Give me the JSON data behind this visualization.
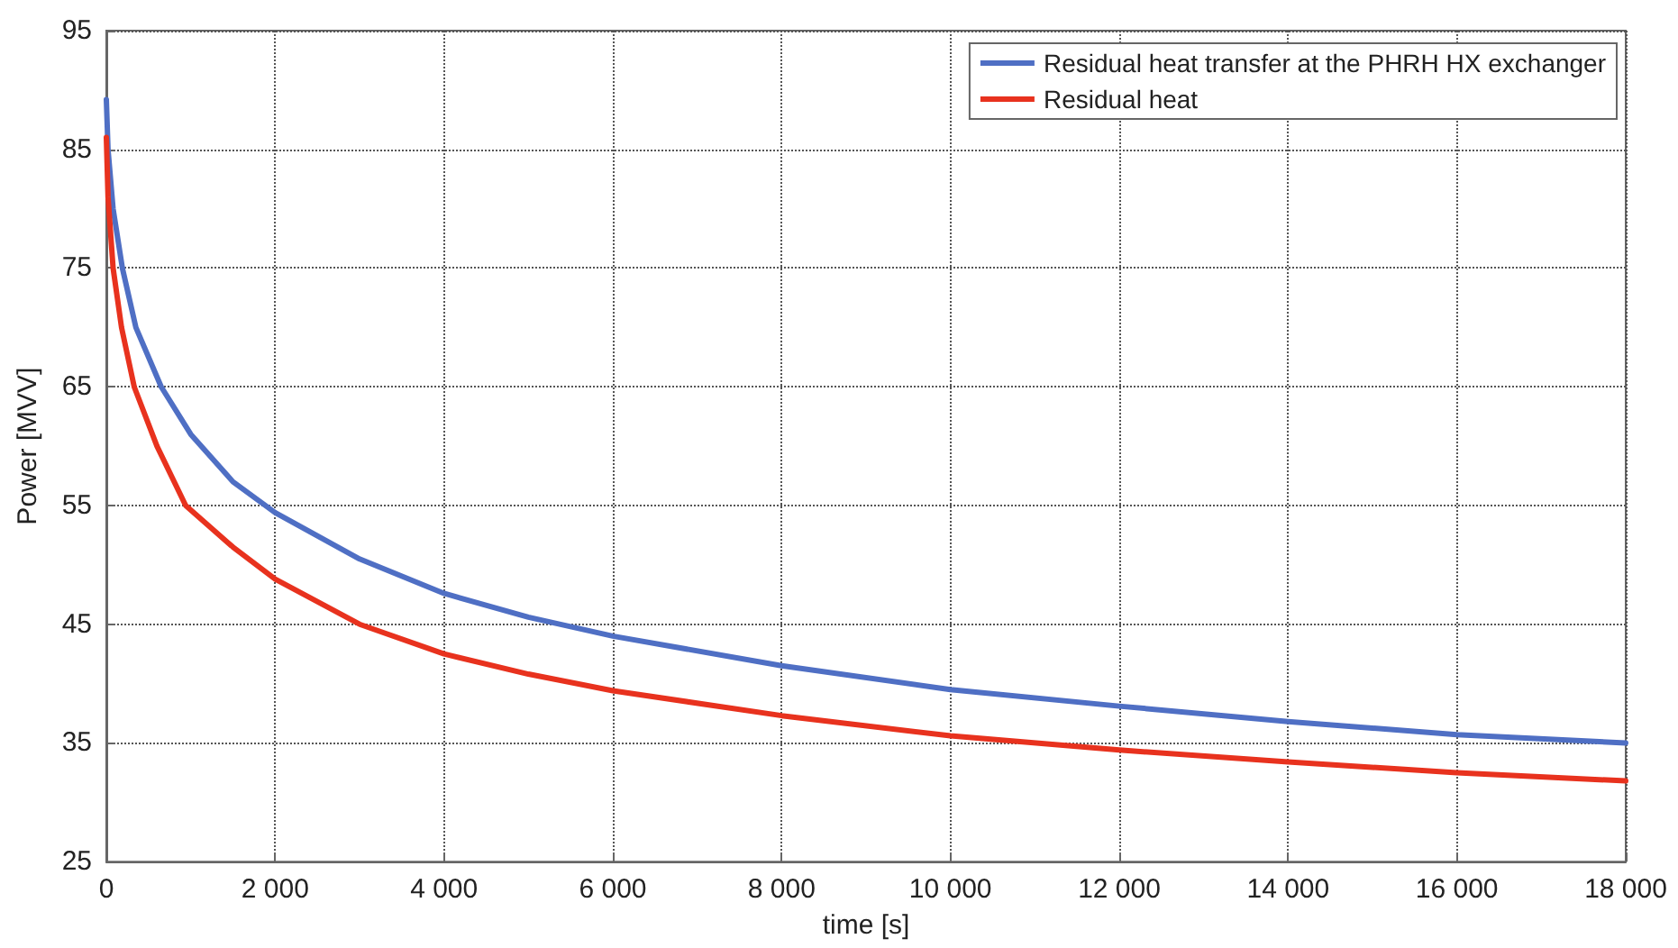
{
  "chart_data": {
    "type": "line",
    "xlabel": "time [s]",
    "ylabel": "Power [MVV]",
    "xlim": [
      0,
      18000
    ],
    "ylim": [
      25,
      95
    ],
    "xticks": [
      0,
      {
        "value": 2000,
        "label": "2 000"
      },
      {
        "value": 4000,
        "label": "4 000"
      },
      {
        "value": 6000,
        "label": "6 000"
      },
      {
        "value": 8000,
        "label": "8 000"
      },
      {
        "value": 10000,
        "label": "10 000"
      },
      {
        "value": 12000,
        "label": "12 000"
      },
      {
        "value": 14000,
        "label": "14 000"
      },
      {
        "value": 16000,
        "label": "16 000"
      },
      {
        "value": 18000,
        "label": "18 000"
      }
    ],
    "yticks": [
      25,
      35,
      45,
      55,
      65,
      75,
      85,
      95
    ],
    "grid": true,
    "legend": "top right",
    "marker": "none",
    "line_style": "solid",
    "series": [
      {
        "name": "Residual heat transfer at the PHRH HX exchanger",
        "color": "#4f6fc4",
        "x": [
          0,
          20,
          80,
          190,
          350,
          650,
          1000,
          1500,
          2000,
          3000,
          4000,
          5000,
          6000,
          8000,
          10000,
          12000,
          14000,
          16000,
          18000
        ],
        "values": [
          89.2,
          85,
          80,
          75,
          70,
          65,
          61,
          57,
          54.4,
          50.5,
          47.6,
          45.6,
          44.0,
          41.5,
          39.5,
          38.1,
          36.8,
          35.7,
          35.0
        ]
      },
      {
        "name": "Residual heat",
        "color": "#e8321e",
        "x": [
          0,
          20,
          80,
          180,
          330,
          600,
          940,
          1500,
          2000,
          3000,
          4000,
          5000,
          6000,
          8000,
          10000,
          12000,
          14000,
          16000,
          18000
        ],
        "values": [
          86,
          81,
          75,
          70,
          65,
          60,
          55,
          51.5,
          48.8,
          45,
          42.5,
          40.8,
          39.4,
          37.3,
          35.6,
          34.4,
          33.4,
          32.5,
          31.8
        ]
      }
    ]
  }
}
